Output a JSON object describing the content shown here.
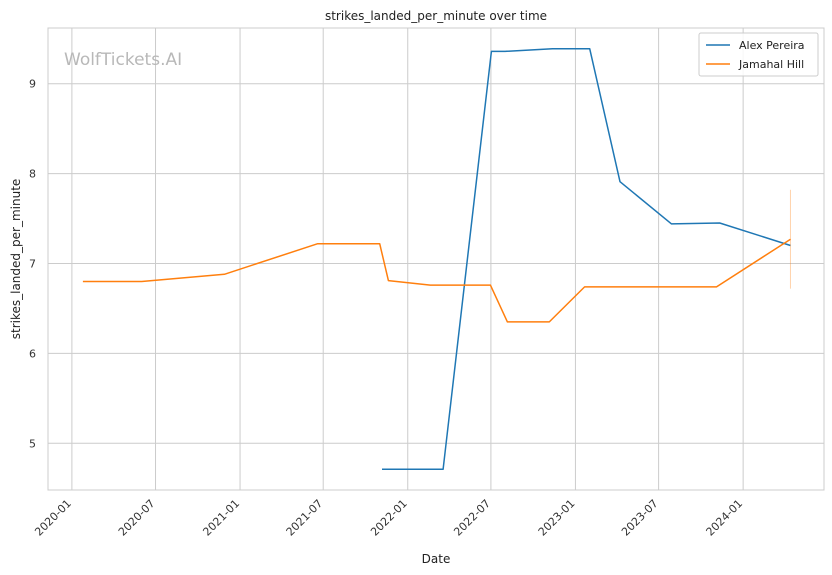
{
  "watermark": "WolfTickets.AI",
  "chart_data": {
    "type": "line",
    "title": "strikes_landed_per_minute over time",
    "xlabel": "Date",
    "ylabel": "strikes_landed_per_minute",
    "xlim": [
      "2019-11-10",
      "2024-06-25"
    ],
    "ylim": [
      4.48,
      9.62
    ],
    "x_ticks": [
      "2020-01",
      "2020-07",
      "2021-01",
      "2021-07",
      "2022-01",
      "2022-07",
      "2023-01",
      "2023-07",
      "2024-01"
    ],
    "y_ticks": [
      5,
      6,
      7,
      8,
      9
    ],
    "grid": true,
    "legend_position": "top-right",
    "series": [
      {
        "name": "Alex Pereira",
        "color": "#1f77b4",
        "points": [
          {
            "x": "2021-11-06",
            "y": 4.71
          },
          {
            "x": "2022-03-19",
            "y": 4.71
          },
          {
            "x": "2022-07-02",
            "y": 9.36
          },
          {
            "x": "2022-08-01",
            "y": 9.36
          },
          {
            "x": "2022-11-12",
            "y": 9.39
          },
          {
            "x": "2023-02-01",
            "y": 9.39
          },
          {
            "x": "2023-04-08",
            "y": 7.91
          },
          {
            "x": "2023-07-29",
            "y": 7.44
          },
          {
            "x": "2023-11-11",
            "y": 7.45
          },
          {
            "x": "2024-04-13",
            "y": 7.2
          }
        ]
      },
      {
        "name": "Jamahal Hill",
        "color": "#ff7f0e",
        "points": [
          {
            "x": "2020-01-25",
            "y": 6.8
          },
          {
            "x": "2020-06-01",
            "y": 6.8
          },
          {
            "x": "2020-11-28",
            "y": 6.88
          },
          {
            "x": "2021-06-19",
            "y": 7.22
          },
          {
            "x": "2021-11-01",
            "y": 7.22
          },
          {
            "x": "2021-11-20",
            "y": 6.81
          },
          {
            "x": "2022-02-19",
            "y": 6.76
          },
          {
            "x": "2022-06-30",
            "y": 6.76
          },
          {
            "x": "2022-08-06",
            "y": 6.35
          },
          {
            "x": "2022-11-05",
            "y": 6.35
          },
          {
            "x": "2023-01-21",
            "y": 6.74
          },
          {
            "x": "2023-11-04",
            "y": 6.74
          },
          {
            "x": "2024-04-13",
            "y": 7.27
          }
        ],
        "error_bar": {
          "x": "2024-04-13",
          "low": 6.72,
          "high": 7.82
        }
      }
    ]
  }
}
